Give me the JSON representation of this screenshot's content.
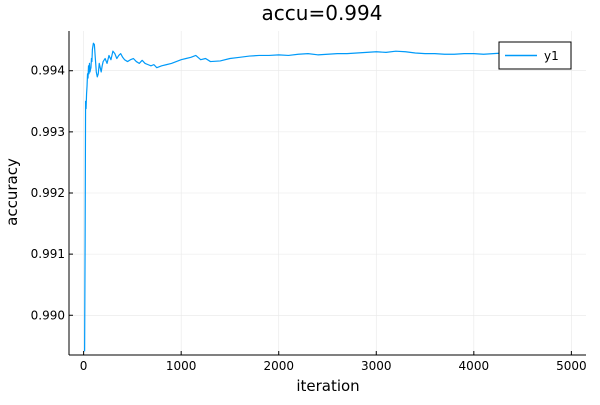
{
  "chart_data": {
    "type": "line",
    "title": "accu=0.994",
    "xlabel": "iteration",
    "ylabel": "accuracy",
    "xlim": [
      -150,
      5150
    ],
    "ylim": [
      0.98935,
      0.99465
    ],
    "x_ticks": [
      0,
      1000,
      2000,
      3000,
      4000,
      5000
    ],
    "x_tick_labels": [
      "0",
      "1000",
      "2000",
      "3000",
      "4000",
      "5000"
    ],
    "y_ticks": [
      0.99,
      0.991,
      0.992,
      0.993,
      0.994
    ],
    "y_tick_labels": [
      "0.990",
      "0.991",
      "0.992",
      "0.993",
      "0.994"
    ],
    "grid": true,
    "legend": "top-right",
    "series": [
      {
        "name": "y1",
        "color": "#009af9",
        "x": [
          10,
          15,
          20,
          25,
          30,
          35,
          40,
          45,
          50,
          55,
          60,
          65,
          70,
          75,
          80,
          85,
          90,
          95,
          100,
          110,
          120,
          130,
          140,
          150,
          160,
          170,
          180,
          190,
          200,
          220,
          240,
          260,
          280,
          300,
          320,
          340,
          360,
          380,
          400,
          420,
          450,
          480,
          510,
          540,
          570,
          600,
          630,
          660,
          690,
          720,
          750,
          800,
          850,
          900,
          950,
          1000,
          1050,
          1100,
          1150,
          1200,
          1250,
          1300,
          1400,
          1500,
          1600,
          1700,
          1800,
          1900,
          2000,
          2100,
          2200,
          2300,
          2400,
          2500,
          2600,
          2700,
          2800,
          2900,
          3000,
          3100,
          3200,
          3300,
          3400,
          3500,
          3600,
          3700,
          3800,
          3900,
          4000,
          4100,
          4200,
          4300,
          4400,
          4500,
          4600,
          4700,
          4800,
          4900,
          5000
        ],
        "y": [
          0.98941,
          0.9912,
          0.9935,
          0.99338,
          0.99362,
          0.99375,
          0.99395,
          0.99388,
          0.99408,
          0.99395,
          0.99412,
          0.99398,
          0.99402,
          0.99405,
          0.9942,
          0.99415,
          0.99435,
          0.9944,
          0.99445,
          0.99443,
          0.9942,
          0.99398,
          0.9939,
          0.99395,
          0.99412,
          0.99405,
          0.99398,
          0.99408,
          0.99415,
          0.9942,
          0.99412,
          0.99425,
          0.99418,
          0.99432,
          0.99428,
          0.9942,
          0.99425,
          0.99428,
          0.99422,
          0.99418,
          0.99415,
          0.99418,
          0.9942,
          0.99415,
          0.99412,
          0.99417,
          0.99412,
          0.9941,
          0.99408,
          0.9941,
          0.99405,
          0.99408,
          0.9941,
          0.99412,
          0.99415,
          0.99418,
          0.9942,
          0.99422,
          0.99425,
          0.99418,
          0.9942,
          0.99415,
          0.99416,
          0.9942,
          0.99422,
          0.99424,
          0.99425,
          0.99425,
          0.99426,
          0.99425,
          0.99427,
          0.99428,
          0.99426,
          0.99427,
          0.99428,
          0.99428,
          0.99429,
          0.9943,
          0.99431,
          0.9943,
          0.99432,
          0.99431,
          0.99429,
          0.99428,
          0.99428,
          0.99427,
          0.99427,
          0.99428,
          0.99428,
          0.99427,
          0.99428,
          0.99429,
          0.99428,
          0.99428,
          0.99427,
          0.99428,
          0.99428,
          0.99428,
          0.99428
        ]
      }
    ]
  }
}
